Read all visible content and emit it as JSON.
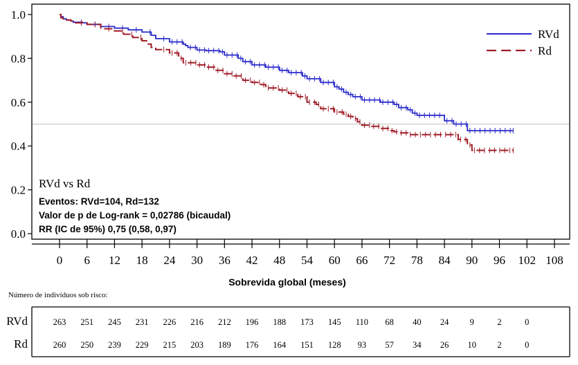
{
  "chart_data": {
    "type": "line",
    "subtype": "kaplan-meier",
    "xlabel": "Sobrevida global (meses)",
    "ylabel": "",
    "xlim": [
      0,
      108
    ],
    "ylim": [
      0,
      1.0
    ],
    "x_ticks": [
      0,
      6,
      12,
      18,
      24,
      30,
      36,
      42,
      48,
      54,
      60,
      66,
      72,
      78,
      84,
      90,
      96,
      102,
      108
    ],
    "y_ticks": [
      0.0,
      0.2,
      0.4,
      0.6,
      0.8,
      1.0
    ],
    "y_tick_labels": [
      "0.0",
      "0.2",
      "0.4",
      "0.6",
      "0.8",
      "1.0"
    ],
    "reference_line": 0.5,
    "legend_position": "top-right",
    "colors": {
      "RVd": "#2a2acc",
      "Rd": "#a01c28",
      "reference": "#cccccc"
    },
    "series": [
      {
        "name": "RVd",
        "line_style": "solid",
        "x": [
          0,
          0.3,
          0.8,
          1.5,
          2.5,
          3,
          5,
          6,
          9,
          12,
          15,
          18,
          20,
          21,
          24,
          27,
          27.5,
          28,
          30,
          32,
          35,
          36,
          39,
          40,
          42,
          45,
          48,
          50,
          53,
          54,
          57,
          60,
          61,
          62,
          63,
          64,
          66,
          70,
          73,
          74,
          76,
          77,
          78,
          84,
          86,
          89,
          99
        ],
        "y": [
          1.0,
          0.99,
          0.98,
          0.975,
          0.97,
          0.965,
          0.962,
          0.955,
          0.945,
          0.938,
          0.93,
          0.92,
          0.905,
          0.89,
          0.875,
          0.865,
          0.858,
          0.85,
          0.838,
          0.835,
          0.83,
          0.815,
          0.8,
          0.785,
          0.77,
          0.76,
          0.745,
          0.735,
          0.72,
          0.707,
          0.69,
          0.67,
          0.66,
          0.645,
          0.635,
          0.625,
          0.61,
          0.6,
          0.59,
          0.575,
          0.565,
          0.55,
          0.54,
          0.515,
          0.5,
          0.47,
          0.47
        ]
      },
      {
        "name": "Rd",
        "line_style": "dashed",
        "x": [
          0,
          0.3,
          0.8,
          1.5,
          2.5,
          3,
          6,
          9,
          12,
          14,
          16,
          18,
          19,
          20,
          21,
          24,
          26,
          27,
          30,
          32,
          34,
          36,
          38,
          40,
          42,
          44,
          45,
          48,
          50,
          52,
          54,
          56,
          57,
          60,
          62,
          63,
          64,
          65,
          66,
          68,
          70,
          72,
          73,
          74,
          76,
          87,
          89,
          90,
          99
        ],
        "y": [
          1.0,
          0.985,
          0.98,
          0.975,
          0.97,
          0.962,
          0.955,
          0.935,
          0.925,
          0.91,
          0.895,
          0.88,
          0.865,
          0.85,
          0.84,
          0.825,
          0.8,
          0.78,
          0.77,
          0.76,
          0.745,
          0.73,
          0.72,
          0.7,
          0.69,
          0.68,
          0.665,
          0.655,
          0.64,
          0.625,
          0.6,
          0.59,
          0.57,
          0.555,
          0.545,
          0.535,
          0.525,
          0.51,
          0.495,
          0.49,
          0.48,
          0.47,
          0.465,
          0.46,
          0.452,
          0.43,
          0.405,
          0.38,
          0.38
        ]
      }
    ],
    "annotations": {
      "comparison": "RVd vs Rd",
      "events": "Eventos: RVd=104, Rd=132",
      "pvalue": "Valor de p de Log-rank = 0,02786 (bicaudal)",
      "hr": "RR (IC de 95%) 0,75 (0,58, 0,97)"
    },
    "risk_table": {
      "title": "Número de indivíduos sob risco:",
      "times": [
        0,
        6,
        12,
        18,
        24,
        30,
        36,
        42,
        48,
        54,
        60,
        66,
        72,
        78,
        84,
        90,
        96,
        102
      ],
      "rows": [
        {
          "label": "RVd",
          "values": [
            263,
            251,
            245,
            231,
            226,
            216,
            212,
            196,
            188,
            173,
            145,
            110,
            68,
            40,
            24,
            9,
            2,
            0
          ]
        },
        {
          "label": "Rd",
          "values": [
            260,
            250,
            239,
            229,
            215,
            203,
            189,
            176,
            164,
            151,
            128,
            93,
            57,
            34,
            26,
            10,
            2,
            0
          ]
        }
      ]
    }
  }
}
